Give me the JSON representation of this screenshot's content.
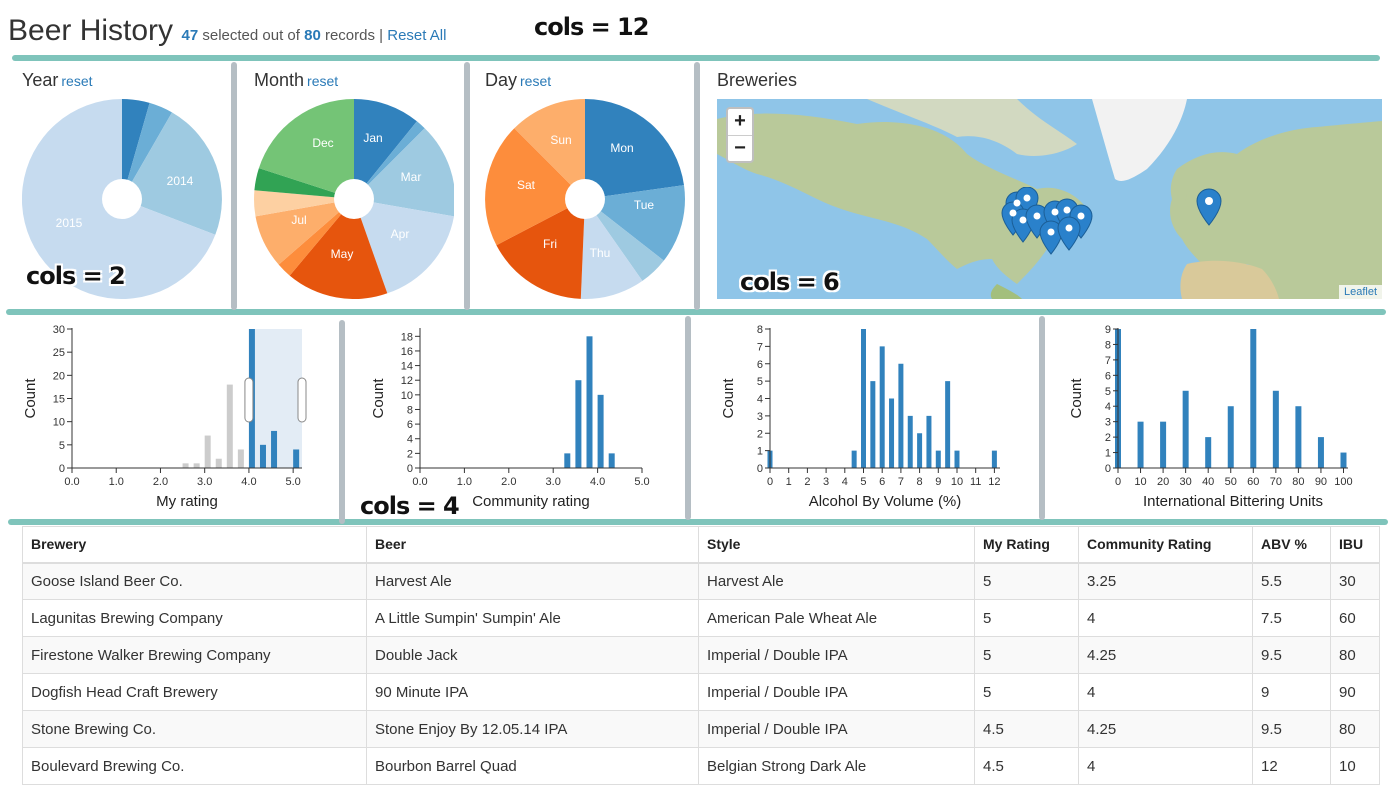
{
  "header": {
    "title": "Beer History",
    "selected": "47",
    "selected_text": "selected out of",
    "total": "80",
    "records_text": "records",
    "separator": "|",
    "reset_all": "Reset All"
  },
  "annotations": {
    "cols12": "cols = 12",
    "cols2": "cols = 2",
    "cols6": "cols = 6",
    "cols4": "cols = 4"
  },
  "pies": {
    "year": {
      "title": "Year",
      "reset": "reset",
      "labels": [
        "2014",
        "2015"
      ]
    },
    "month": {
      "title": "Month",
      "reset": "reset",
      "labels": [
        "Jan",
        "Mar",
        "Apr",
        "May",
        "Jul",
        "Dec"
      ]
    },
    "day": {
      "title": "Day",
      "reset": "reset",
      "labels": [
        "Mon",
        "Tue",
        "Thu",
        "Fri",
        "Sat",
        "Sun"
      ]
    }
  },
  "map": {
    "title": "Breweries",
    "zoom_in": "+",
    "zoom_out": "−",
    "attribution": "Leaflet"
  },
  "chart_data": [
    {
      "type": "bar",
      "title": "",
      "xlabel": "My rating",
      "ylabel": "Count",
      "xlim": [
        0,
        5.2
      ],
      "ylim": [
        0,
        30
      ],
      "xticks": [
        "0.0",
        "1.0",
        "2.0",
        "3.0",
        "4.0",
        "5.0"
      ],
      "yticks": [
        "0",
        "5",
        "10",
        "15",
        "20",
        "25",
        "30"
      ],
      "series": [
        {
          "name": "filtered-out",
          "x": [
            2.5,
            2.75,
            3.0,
            3.25,
            3.5,
            3.75
          ],
          "values": [
            1,
            1,
            7,
            2,
            18,
            4
          ]
        },
        {
          "name": "selected",
          "x": [
            4.0,
            4.25,
            4.5,
            5.0
          ],
          "values": [
            30,
            5,
            8,
            4
          ]
        }
      ],
      "brush": [
        4.0,
        5.2
      ]
    },
    {
      "type": "bar",
      "title": "",
      "xlabel": "Community rating",
      "ylabel": "Count",
      "xlim": [
        0,
        5
      ],
      "ylim": [
        0,
        19
      ],
      "xticks": [
        "0.0",
        "1.0",
        "2.0",
        "3.0",
        "4.0",
        "5.0"
      ],
      "yticks": [
        "0",
        "2",
        "4",
        "6",
        "8",
        "10",
        "12",
        "14",
        "16",
        "18"
      ],
      "x": [
        3.25,
        3.5,
        3.75,
        4.0,
        4.25
      ],
      "values": [
        2,
        12,
        18,
        10,
        2
      ]
    },
    {
      "type": "bar",
      "title": "",
      "xlabel": "Alcohol By Volume (%)",
      "ylabel": "Count",
      "xlim": [
        0,
        12.3
      ],
      "ylim": [
        0,
        8
      ],
      "xticks": [
        "0",
        "1",
        "2",
        "3",
        "4",
        "5",
        "6",
        "7",
        "8",
        "9",
        "10",
        "11",
        "12"
      ],
      "yticks": [
        "0",
        "1",
        "2",
        "3",
        "4",
        "5",
        "6",
        "7",
        "8"
      ],
      "x": [
        0,
        4.5,
        5,
        5.5,
        6,
        6.5,
        7,
        7.5,
        8,
        8.5,
        9,
        9.5,
        10,
        12
      ],
      "values": [
        1,
        1,
        8,
        5,
        7,
        4,
        6,
        3,
        2,
        3,
        1,
        5,
        1,
        1
      ]
    },
    {
      "type": "bar",
      "title": "",
      "xlabel": "International Bittering Units",
      "ylabel": "Count",
      "xlim": [
        0,
        102
      ],
      "ylim": [
        0,
        9
      ],
      "xticks": [
        "0",
        "10",
        "20",
        "30",
        "40",
        "50",
        "60",
        "70",
        "80",
        "90",
        "100"
      ],
      "yticks": [
        "0",
        "1",
        "2",
        "3",
        "4",
        "5",
        "6",
        "7",
        "8",
        "9"
      ],
      "x": [
        0,
        10,
        20,
        30,
        40,
        50,
        60,
        70,
        80,
        90,
        100
      ],
      "values": [
        9,
        3,
        3,
        5,
        2,
        4,
        9,
        5,
        4,
        2,
        1
      ]
    }
  ],
  "table": {
    "headers": [
      "Brewery",
      "Beer",
      "Style",
      "My Rating",
      "Community Rating",
      "ABV %",
      "IBU"
    ],
    "rows": [
      [
        "Goose Island Beer Co.",
        "Harvest Ale",
        "Harvest Ale",
        "5",
        "3.25",
        "5.5",
        "30"
      ],
      [
        "Lagunitas Brewing Company",
        "A Little Sumpin' Sumpin' Ale",
        "American Pale Wheat Ale",
        "5",
        "4",
        "7.5",
        "60"
      ],
      [
        "Firestone Walker Brewing Company",
        "Double Jack",
        "Imperial / Double IPA",
        "5",
        "4.25",
        "9.5",
        "80"
      ],
      [
        "Dogfish Head Craft Brewery",
        "90 Minute IPA",
        "Imperial / Double IPA",
        "5",
        "4",
        "9",
        "90"
      ],
      [
        "Stone Brewing Co.",
        "Stone Enjoy By 12.05.14 IPA",
        "Imperial / Double IPA",
        "4.5",
        "4.25",
        "9.5",
        "80"
      ],
      [
        "Boulevard Brewing Co.",
        "Bourbon Barrel Quad",
        "Belgian Strong Dark Ale",
        "4.5",
        "4",
        "12",
        "10"
      ]
    ]
  },
  "colors": {
    "accent": "#2a7ab7",
    "bar": "#3182bd",
    "bar_gray": "#cccccc",
    "divider_h": "#7fc4bb",
    "divider_v": "#b5bec4"
  }
}
